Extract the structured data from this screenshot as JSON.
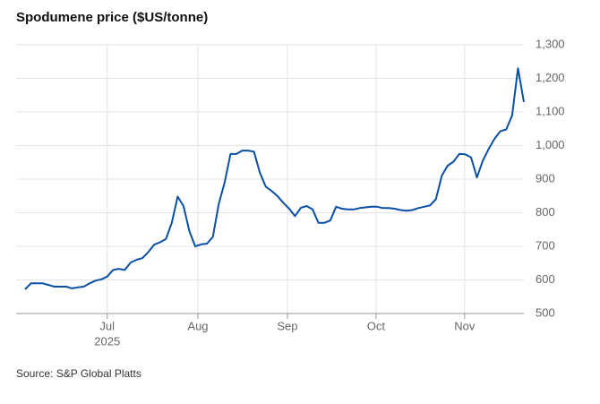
{
  "chart_data": {
    "type": "line",
    "title": "Spodumene price ($US/tonne)",
    "source": "Source: S&P Global Platts",
    "series": [
      {
        "name": "Spodumene price",
        "color": "#0a4fa6",
        "values": [
          572,
          590,
          590,
          590,
          585,
          580,
          580,
          580,
          575,
          578,
          580,
          590,
          598,
          602,
          610,
          630,
          633,
          630,
          652,
          660,
          665,
          683,
          705,
          712,
          722,
          770,
          848,
          820,
          745,
          700,
          706,
          708,
          728,
          825,
          890,
          975,
          975,
          985,
          985,
          982,
          920,
          878,
          865,
          850,
          830,
          812,
          790,
          815,
          820,
          810,
          770,
          770,
          777,
          818,
          812,
          810,
          810,
          814,
          816,
          818,
          818,
          814,
          814,
          812,
          808,
          806,
          808,
          814,
          818,
          822,
          840,
          910,
          940,
          952,
          975,
          974,
          965,
          905,
          955,
          990,
          1020,
          1043,
          1048,
          1090,
          1230,
          1130
        ]
      }
    ],
    "xlim": [
      0,
      85
    ],
    "xticks": [
      {
        "value": 14,
        "label": "Jul"
      },
      {
        "value": 29.45,
        "label": "Aug"
      },
      {
        "value": 44.7,
        "label": "Sep"
      },
      {
        "value": 59.8,
        "label": "Oct"
      },
      {
        "value": 74.9,
        "label": "Nov"
      }
    ],
    "year_label": "2025",
    "ylim": [
      500,
      1300
    ],
    "yticks": [
      500,
      600,
      700,
      800,
      900,
      {
        "value": 1000,
        "label": "1,000"
      },
      {
        "value": 1100,
        "label": "1,100"
      },
      {
        "value": 1200,
        "label": "1,200"
      },
      {
        "value": 1300,
        "label": "1,300"
      }
    ],
    "grid": true
  }
}
